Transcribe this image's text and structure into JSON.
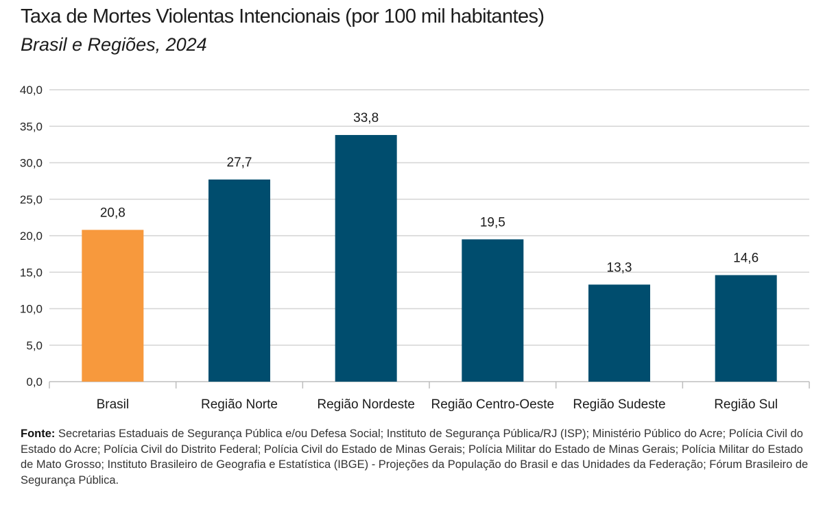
{
  "chart_data": {
    "type": "bar",
    "title": "Taxa de Mortes Violentas Intencionais (por 100 mil habitantes)",
    "subtitle": "Brasil e Regiões, 2024",
    "categories": [
      "Brasil",
      "Região Norte",
      "Região Nordeste",
      "Região Centro-Oeste",
      "Região Sudeste",
      "Região Sul"
    ],
    "values": [
      20.8,
      27.7,
      33.8,
      19.5,
      13.3,
      14.6
    ],
    "value_labels": [
      "20,8",
      "27,7",
      "33,8",
      "19,5",
      "13,3",
      "14,6"
    ],
    "bar_colors": [
      "#F7993D",
      "#004D6E",
      "#004D6E",
      "#004D6E",
      "#004D6E",
      "#004D6E"
    ],
    "yticks": [
      0,
      5,
      10,
      15,
      20,
      25,
      30,
      35,
      40
    ],
    "ytick_labels": [
      "0,0",
      "5,0",
      "10,0",
      "15,0",
      "20,0",
      "25,0",
      "30,0",
      "35,0",
      "40,0"
    ],
    "ylim": [
      0,
      40
    ],
    "grid": true,
    "xlabel": "",
    "ylabel": ""
  },
  "source": {
    "label": "Fonte:",
    "text": "Secretarias Estaduais de Segurança Pública e/ou Defesa Social; Instituto de Segurança Pública/RJ (ISP); Ministério Público do Acre; Polícia Civil do Estado do Acre; Polícia Civil do Distrito Federal; Polícia Civil do Estado de Minas Gerais; Polícia Militar do Estado de Minas Gerais; Polícia Militar do Estado de Mato Grosso; Instituto Brasileiro de Geografia e Estatística (IBGE) - Projeções da População do Brasil e das Unidades da Federação; Fórum Brasileiro de Segurança Pública."
  }
}
